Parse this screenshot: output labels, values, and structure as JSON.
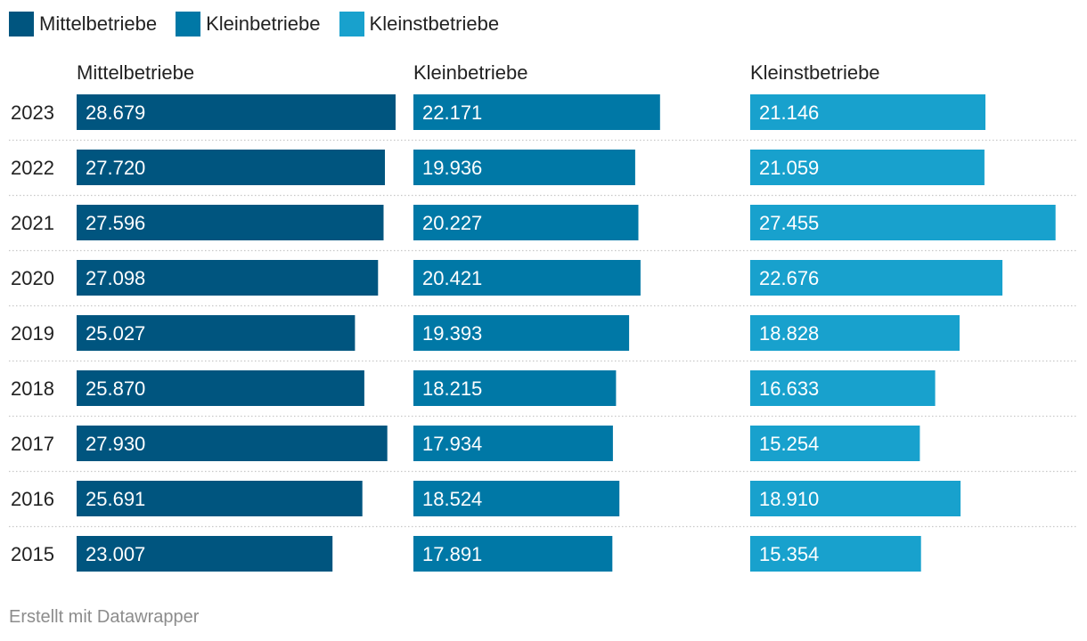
{
  "legend": [
    {
      "label": "Mittelbetriebe",
      "color": "#00557f"
    },
    {
      "label": "Kleinbetriebe",
      "color": "#0078a6"
    },
    {
      "label": "Kleinstbetriebe",
      "color": "#18a1cd"
    }
  ],
  "footer": "Erstellt mit Datawrapper",
  "chart_data": {
    "type": "bar",
    "orientation": "horizontal",
    "layout": "small-multiples",
    "categories": [
      "2023",
      "2022",
      "2021",
      "2020",
      "2019",
      "2018",
      "2017",
      "2016",
      "2015"
    ],
    "series": [
      {
        "name": "Mittelbetriebe",
        "color": "#00557f",
        "values": [
          28679,
          27720,
          27596,
          27098,
          25027,
          25870,
          27930,
          25691,
          23007
        ],
        "labels": [
          "28.679",
          "27.720",
          "27.596",
          "27.098",
          "25.027",
          "25.870",
          "27.930",
          "25.691",
          "23.007"
        ]
      },
      {
        "name": "Kleinbetriebe",
        "color": "#0078a6",
        "values": [
          22171,
          19936,
          20227,
          20421,
          19393,
          18215,
          17934,
          18524,
          17891
        ],
        "labels": [
          "22.171",
          "19.936",
          "20.227",
          "20.421",
          "19.393",
          "18.215",
          "17.934",
          "18.524",
          "17.891"
        ]
      },
      {
        "name": "Kleinstbetriebe",
        "color": "#18a1cd",
        "values": [
          21146,
          21059,
          27455,
          22676,
          18828,
          16633,
          15254,
          18910,
          15354
        ],
        "labels": [
          "21.146",
          "21.059",
          "27.455",
          "22.676",
          "18.828",
          "16.633",
          "15.254",
          "18.910",
          "15.354"
        ]
      }
    ],
    "xlim": [
      0,
      28679
    ],
    "title": "",
    "xlabel": "",
    "ylabel": ""
  }
}
